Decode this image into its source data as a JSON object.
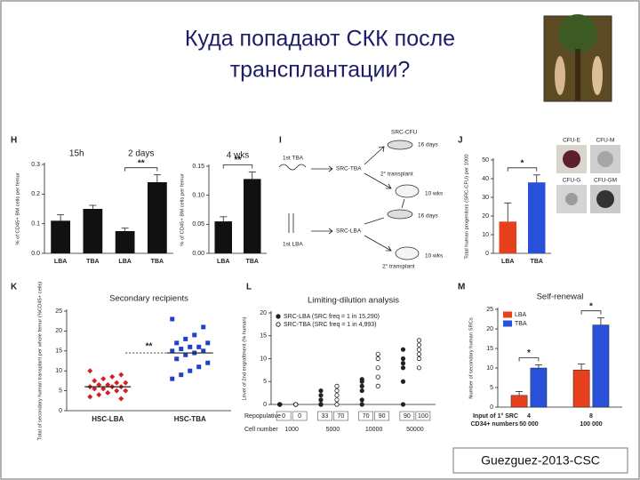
{
  "title": {
    "lines": [
      "Куда попадают СКК после",
      "трансплантации?"
    ]
  },
  "credit": "Guezguez-2013-CSC",
  "diagram": {
    "panel": "I",
    "labels": [
      "1st TBA",
      "SRC-TBA",
      "SRC-CFU",
      "16 days",
      "2° transplant",
      "10 wks",
      "16 days",
      "1st LBA",
      "SRC-LBA",
      "10 wks",
      "2° transplant"
    ]
  },
  "micrographs": {
    "labels": [
      "CFU-E",
      "CFU-M",
      "CFU-G",
      "CFU-GM"
    ]
  },
  "chart_data": [
    {
      "panel": "H",
      "type": "bar",
      "ylabel": "% of CD45+ BM cells per femur",
      "groups": [
        "15h",
        "2 days"
      ],
      "categories": [
        "LBA",
        "TBA",
        "LBA",
        "TBA"
      ],
      "values": [
        0.11,
        0.15,
        0.075,
        0.24
      ],
      "errors": [
        0.02,
        0.012,
        0.01,
        0.025
      ],
      "color": "#111111",
      "ylim": [
        0,
        0.3
      ],
      "yticks": [
        {
          "value": 0,
          "label": "0.0"
        },
        0.1,
        0.2,
        0.3
      ],
      "annotations": [
        "**"
      ]
    },
    {
      "type": "bar",
      "ylabel": "% of CD45+ BM cells per femur",
      "groups": [
        "4 wks"
      ],
      "categories": [
        "LBA",
        "TBA"
      ],
      "values": [
        0.055,
        0.128
      ],
      "errors": [
        0.008,
        0.012
      ],
      "color": "#111111",
      "ylim": [
        0,
        0.15
      ],
      "yticks": [
        {
          "value": 0,
          "label": "0.00"
        },
        0.05,
        {
          "value": 0.1,
          "label": "0.10"
        },
        0.15
      ],
      "annotations": [
        "**"
      ]
    },
    {
      "panel": "J",
      "type": "bar",
      "ylabel": "Total human progenitors (SRC-CFU) per 1000",
      "categories": [
        "LBA",
        "TBA"
      ],
      "values": [
        17,
        38
      ],
      "errors": [
        10,
        4
      ],
      "colors": [
        "#e8401c",
        "#2850d8"
      ],
      "ylim": [
        0,
        50
      ],
      "yticks": [
        0,
        10,
        20,
        30,
        40,
        50
      ],
      "annotations": [
        "*"
      ]
    },
    {
      "panel": "K",
      "type": "strip",
      "title": "Secondary recipients",
      "ylabel": "Total of secondary human transplant per whole femur (%CD45+ cells)",
      "categories": [
        "HSC-LBA",
        "HSC-TBA"
      ],
      "series": [
        {
          "color": "#d42020",
          "marker": "diamond",
          "values": [
            10,
            9,
            8.5,
            8,
            7.5,
            7,
            7,
            6.5,
            6.5,
            6,
            6,
            6,
            5.5,
            5.5,
            5,
            5,
            4.5,
            4,
            3.5,
            3
          ]
        },
        {
          "color": "#2040c8",
          "marker": "square",
          "values": [
            23,
            21,
            19,
            18,
            17,
            17,
            16,
            16,
            15.5,
            15,
            15,
            14.5,
            14,
            13,
            12,
            11,
            10,
            9,
            8
          ]
        }
      ],
      "means": [
        6,
        14.5
      ],
      "ylim": [
        0,
        25
      ],
      "yticks": [
        0,
        5,
        10,
        15,
        20,
        25
      ],
      "annotations": [
        "**"
      ]
    },
    {
      "panel": "L",
      "type": "dotplot",
      "title": "Limiting-dilution analysis",
      "ylabel": "Level of 2nd engraftment (% human)",
      "categories": [
        "1000",
        "5000",
        "10000",
        "50000"
      ],
      "xlabel": "Cell number",
      "repopulative_label": "Repopulative",
      "repopulative": [
        [
          0,
          0
        ],
        [
          33,
          70
        ],
        [
          70,
          90
        ],
        [
          90,
          100
        ]
      ],
      "series": [
        {
          "name": "SRC-LBA (SRC freq = 1 in 15,290)",
          "color": "#222222",
          "marker": "filled",
          "values": [
            [
              0,
              0,
              0,
              0,
              0
            ],
            [
              0,
              0,
              0,
              1,
              2,
              3
            ],
            [
              0,
              1,
              3,
              4,
              5,
              5.5
            ],
            [
              0,
              5,
              8,
              9,
              10,
              12
            ]
          ]
        },
        {
          "name": "SRC-TBA (SRC freq = 1 in 4,993)",
          "color": "#222222",
          "marker": "open",
          "values": [
            [
              0,
              0,
              0,
              0
            ],
            [
              0,
              1,
              2,
              3,
              4
            ],
            [
              4,
              6,
              8,
              10,
              11
            ],
            [
              8,
              10,
              11,
              12,
              13,
              14
            ]
          ]
        }
      ],
      "ylim": [
        0,
        20
      ],
      "yticks": [
        0,
        5,
        10,
        15,
        20
      ]
    },
    {
      "panel": "M",
      "type": "bar",
      "title": "Self-renewal",
      "ylabel": "Number of secondary human SRCs",
      "categories": [
        "4",
        "8"
      ],
      "sublabels": [
        "50 000",
        "100 000"
      ],
      "xlabel": [
        "Input of 1° SRC",
        "CD34+ numbers"
      ],
      "series": [
        {
          "name": "LBA",
          "color": "#e8401c",
          "values": [
            3,
            9.5
          ],
          "errors": [
            1,
            1.5
          ]
        },
        {
          "name": "TBA",
          "color": "#2850d8",
          "values": [
            10,
            21
          ],
          "errors": [
            0.8,
            1.8
          ]
        }
      ],
      "ylim": [
        0,
        25
      ],
      "yticks": [
        0,
        5,
        10,
        15,
        20,
        25
      ],
      "annotations": [
        "*",
        "*"
      ]
    }
  ]
}
